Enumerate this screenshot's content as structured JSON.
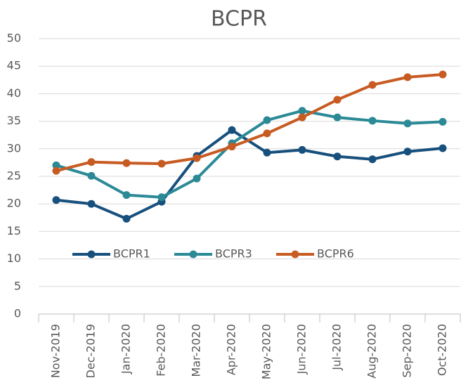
{
  "chart_data": {
    "type": "line",
    "title": "BCPR",
    "categories": [
      "Nov-2019",
      "Dec-2019",
      "Jan-2020",
      "Feb-2020",
      "Mar-2020",
      "Apr-2020",
      "May-2020",
      "Jun-2020",
      "Jul-2020",
      "Aug-2020",
      "Sep-2020",
      "Oct-2020"
    ],
    "series": [
      {
        "name": "BCPR1",
        "color": "#17507d",
        "values": [
          20.7,
          20.0,
          17.3,
          20.4,
          28.7,
          33.4,
          29.3,
          29.8,
          28.6,
          28.1,
          29.5,
          30.1
        ]
      },
      {
        "name": "BCPR3",
        "color": "#2b8a96",
        "values": [
          27.0,
          25.1,
          21.6,
          21.2,
          24.6,
          31.0,
          35.2,
          36.9,
          35.7,
          35.1,
          34.6,
          34.9
        ]
      },
      {
        "name": "BCPR6",
        "color": "#c75b22",
        "values": [
          26.0,
          27.6,
          27.4,
          27.3,
          28.3,
          30.4,
          32.8,
          35.7,
          38.9,
          41.6,
          43.0,
          43.5
        ]
      }
    ],
    "ylim": [
      0,
      50
    ],
    "yticks": [
      0,
      5,
      10,
      15,
      20,
      25,
      30,
      35,
      40,
      45,
      50
    ],
    "grid": true
  }
}
